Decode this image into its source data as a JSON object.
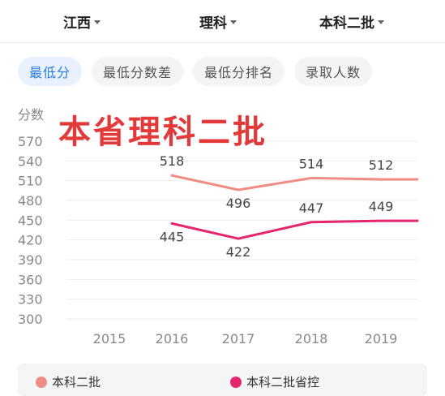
{
  "filters": {
    "province": "江西",
    "subject": "理科",
    "batch": "本科二批"
  },
  "tabs": [
    {
      "label": "最低分",
      "active": true
    },
    {
      "label": "最低分数差",
      "active": false
    },
    {
      "label": "最低分排名",
      "active": false
    },
    {
      "label": "录取人数",
      "active": false
    }
  ],
  "overlay_title": "本省理科二批",
  "colors": {
    "accent": "#2a7de1",
    "series_line": "#f08c86",
    "series_control": "#e5266e",
    "overlay": "#e23a3a"
  },
  "chart_data": {
    "type": "line",
    "ylabel": "分数",
    "x": [
      "2015",
      "2016",
      "2017",
      "2018",
      "2019"
    ],
    "ylim": [
      300,
      570
    ],
    "yticks": [
      570,
      540,
      510,
      480,
      450,
      420,
      390,
      360,
      330,
      300
    ],
    "grid": true,
    "legend_position": "bottom",
    "series": [
      {
        "name": "本科二批",
        "values": [
          null,
          518,
          496,
          514,
          512
        ],
        "color": "#f08c86",
        "labels": [
          "",
          "518",
          "496",
          "514",
          "512"
        ]
      },
      {
        "name": "本科二批省控",
        "values": [
          null,
          445,
          422,
          447,
          449
        ],
        "color": "#e5266e",
        "labels": [
          "",
          "445",
          "422",
          "447",
          "449"
        ]
      }
    ]
  }
}
